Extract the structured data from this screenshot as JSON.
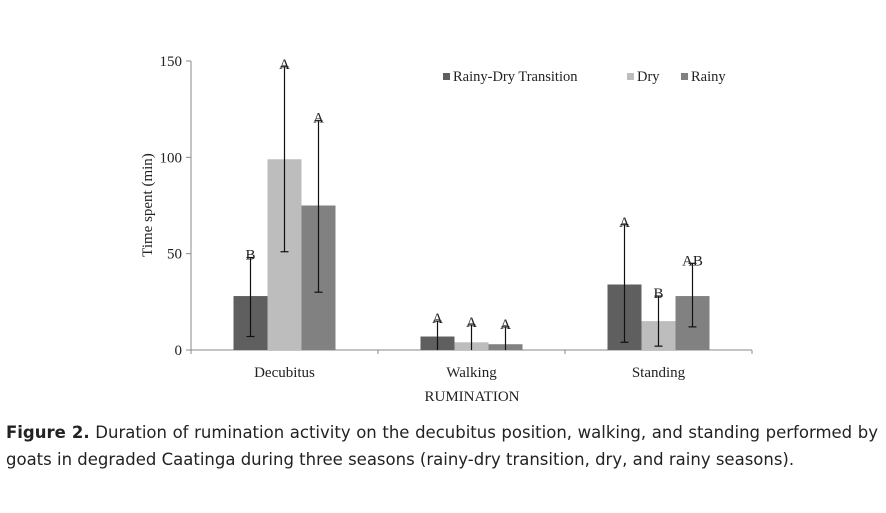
{
  "chart_data": {
    "type": "bar",
    "title": "",
    "xlabel": "RUMINATION",
    "ylabel": "Time spent (min)",
    "ylim": [
      0,
      150
    ],
    "yticks": [
      0,
      50,
      100,
      150
    ],
    "categories": [
      "Decubitus",
      "Walking",
      "Standing"
    ],
    "legend_position": "top-right",
    "series": [
      {
        "name": "Rainy-Dry Transition",
        "color": "#5f5f5f",
        "values": [
          28,
          7,
          34
        ],
        "err_low": [
          7,
          0,
          4
        ],
        "err_high": [
          48,
          15,
          65
        ],
        "letters": [
          "B",
          "A",
          "A"
        ]
      },
      {
        "name": "Dry",
        "color": "#bdbdbd",
        "values": [
          99,
          4,
          15
        ],
        "err_low": [
          51,
          0,
          2
        ],
        "err_high": [
          147,
          13,
          28
        ],
        "letters": [
          "A",
          "A",
          "B"
        ]
      },
      {
        "name": "Rainy",
        "color": "#818181",
        "values": [
          75,
          3,
          28
        ],
        "err_low": [
          30,
          0,
          12
        ],
        "err_high": [
          119,
          12,
          45
        ],
        "letters": [
          "A",
          "A",
          "AB"
        ]
      }
    ]
  },
  "caption": {
    "label": "Figure 2.",
    "text": " Duration of rumination activity on the decubitus position, walking, and standing performed by goats in degraded Caatinga during three seasons (rainy-dry transition, dry, and rainy seasons)."
  }
}
